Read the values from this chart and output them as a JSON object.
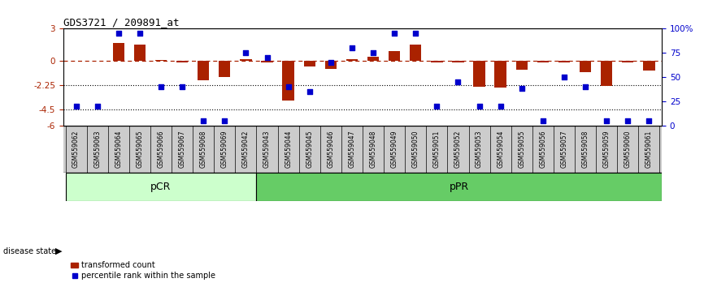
{
  "title": "GDS3721 / 209891_at",
  "samples": [
    "GSM559062",
    "GSM559063",
    "GSM559064",
    "GSM559065",
    "GSM559066",
    "GSM559067",
    "GSM559068",
    "GSM559069",
    "GSM559042",
    "GSM559043",
    "GSM559044",
    "GSM559045",
    "GSM559046",
    "GSM559047",
    "GSM559048",
    "GSM559049",
    "GSM559050",
    "GSM559051",
    "GSM559052",
    "GSM559053",
    "GSM559054",
    "GSM559055",
    "GSM559056",
    "GSM559057",
    "GSM559058",
    "GSM559059",
    "GSM559060",
    "GSM559061"
  ],
  "bar_values": [
    0.05,
    0.05,
    1.7,
    1.5,
    0.1,
    -0.1,
    -1.8,
    -1.5,
    0.15,
    -0.1,
    -3.7,
    -0.5,
    -0.7,
    0.2,
    0.4,
    0.9,
    1.5,
    -0.15,
    -0.15,
    -2.4,
    -2.5,
    -0.8,
    -0.15,
    -0.15,
    -1.0,
    -2.3,
    -0.15,
    -0.9
  ],
  "percentile_values": [
    20,
    20,
    95,
    95,
    40,
    40,
    5,
    5,
    75,
    70,
    40,
    35,
    65,
    80,
    75,
    95,
    95,
    20,
    45,
    20,
    20,
    38,
    5,
    50,
    40,
    5,
    5,
    5
  ],
  "pcr_count": 9,
  "ppr_count": 19,
  "ylim_left": [
    -6,
    3
  ],
  "ylim_right": [
    0,
    100
  ],
  "yticks_left": [
    3,
    0,
    -2.25,
    -4.5,
    -6
  ],
  "ytick_labels_left": [
    "3",
    "0",
    "-2.25",
    "-4.5",
    "-6"
  ],
  "yticks_right": [
    100,
    75,
    50,
    25,
    0
  ],
  "ytick_labels_right": [
    "100%",
    "75",
    "50",
    "25",
    "0"
  ],
  "dotted_lines": [
    -2.25,
    -4.5
  ],
  "bar_color": "#aa2200",
  "percentile_color": "#0000cc",
  "pcr_color": "#ccffcc",
  "ppr_color": "#66cc66",
  "bg_color": "#ffffff",
  "label_bg": "#cccccc",
  "disease_state_label": "disease state",
  "pcr_label": "pCR",
  "ppr_label": "pPR",
  "legend_bar_label": "transformed count",
  "legend_pct_label": "percentile rank within the sample"
}
